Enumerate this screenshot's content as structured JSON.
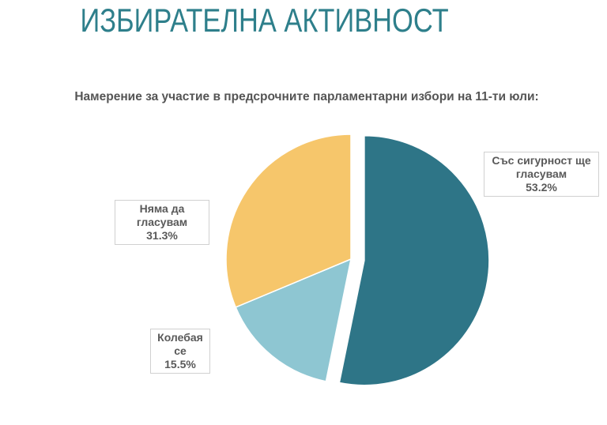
{
  "chart_data": {
    "type": "pie",
    "title": "ИЗБИРАТЕЛНА АКТИВНОСТ",
    "subtitle": "Намерение за участие в предсрочните парламентарни избори на 11-ти юли:",
    "slices": [
      {
        "label": "Със сигурност ще гласувам",
        "value": 53.2,
        "value_label": "53.2%",
        "color": "#2e7587",
        "exploded": true
      },
      {
        "label": "Колебая се",
        "value": 15.5,
        "value_label": "15.5%",
        "color": "#8ec6d2",
        "exploded": false
      },
      {
        "label": "Няма да гласувам",
        "value": 31.3,
        "value_label": "31.3%",
        "color": "#f6c66b",
        "exploded": false
      }
    ],
    "start_angle": "top",
    "direction": "clockwise"
  }
}
